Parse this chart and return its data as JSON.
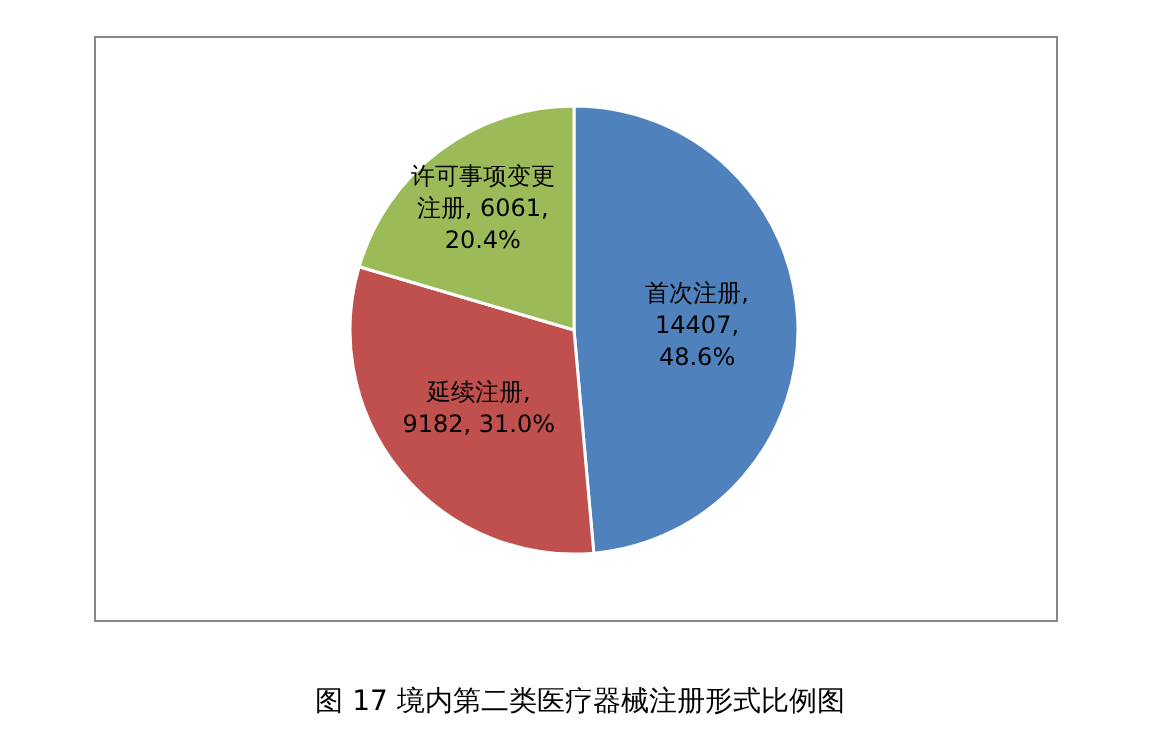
{
  "chart_data": {
    "type": "pie",
    "title": "图 17  境内第二类医疗器械注册形式比例图",
    "categories": [
      "首次注册",
      "延续注册",
      "许可事项变更注册"
    ],
    "values": [
      14407,
      9182,
      6061
    ],
    "value_labels": [
      ", 14407, 48.6%",
      ", 9182, 31.0%",
      ", 6061, 20.4%"
    ],
    "colors": [
      "#4f81bd",
      "#c0504d",
      "#9bbb59"
    ],
    "legend": false
  }
}
